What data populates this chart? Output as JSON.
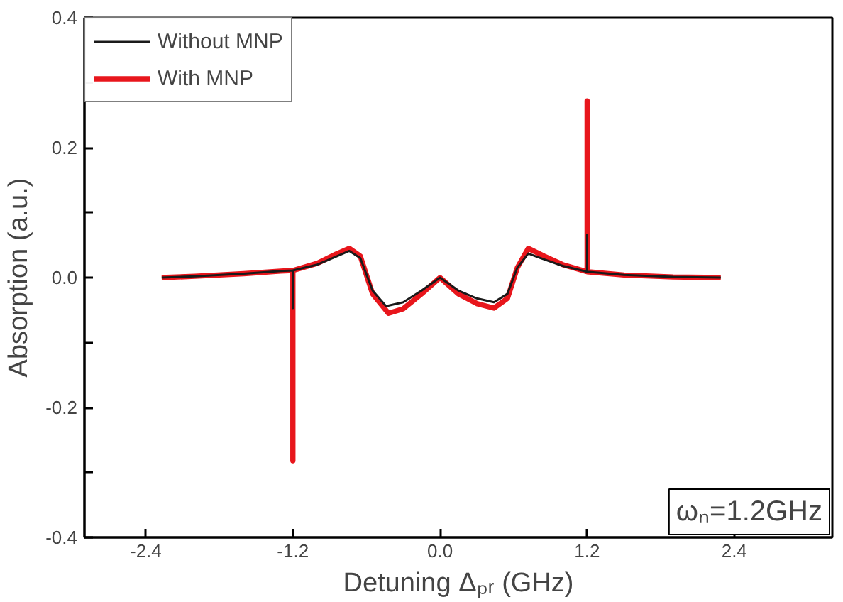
{
  "chart_data": {
    "type": "line",
    "xlabel": "Detuning Δₚᵣ (GHz)",
    "ylabel": "Absorption (a.u.)",
    "xlim": [
      -2.9,
      3.2
    ],
    "xticks": [
      -2.4,
      -1.2,
      {
        "value": 0,
        "label": "0.0"
      },
      1.2,
      2.4
    ],
    "ylim": [
      -0.4,
      0.4
    ],
    "yticks": [
      -0.4,
      {
        "value": -0.3,
        "label": null
      },
      -0.2,
      {
        "value": -0.1,
        "label": null
      },
      {
        "value": 0,
        "label": "0.0"
      },
      {
        "value": 0.1,
        "label": null
      },
      0.2,
      {
        "value": 0.3,
        "label": null
      },
      0.4
    ],
    "series": [
      {
        "name": "Without MNP",
        "color": "#1a1a1a",
        "x": [
          -2.27,
          -2.0,
          -1.6,
          -1.3,
          -1.2,
          -1.2,
          -1.2,
          -1.0,
          -0.85,
          -0.74,
          -0.65,
          -0.55,
          -0.44,
          -0.3,
          -0.15,
          0,
          0.15,
          0.3,
          0.44,
          0.55,
          0.63,
          0.72,
          0.85,
          1.0,
          1.2,
          1.2,
          1.2,
          1.5,
          1.9,
          2.29
        ],
        "values": [
          0,
          0.002,
          0.006,
          0.01,
          0.011,
          -0.047,
          0.011,
          0.02,
          0.032,
          0.041,
          0.03,
          -0.02,
          -0.044,
          -0.038,
          -0.02,
          0,
          -0.02,
          -0.032,
          -0.038,
          -0.025,
          0.015,
          0.037,
          0.028,
          0.018,
          0.009,
          0.066,
          0.009,
          0.004,
          0.001,
          0
        ]
      },
      {
        "name": "With MNP",
        "color": "#e8161c",
        "x": [
          -2.27,
          -2.0,
          -1.6,
          -1.3,
          -1.2,
          -1.2,
          -1.2,
          -1.0,
          -0.85,
          -0.74,
          -0.65,
          -0.55,
          -0.42,
          -0.3,
          -0.15,
          0,
          0.15,
          0.3,
          0.44,
          0.55,
          0.63,
          0.72,
          0.85,
          1.0,
          1.2,
          1.2,
          1.2,
          1.5,
          1.9,
          2.29
        ],
        "values": [
          0,
          0.002,
          0.006,
          0.01,
          0.011,
          -0.282,
          0.011,
          0.022,
          0.036,
          0.045,
          0.033,
          -0.025,
          -0.055,
          -0.048,
          -0.025,
          0,
          -0.025,
          -0.04,
          -0.047,
          -0.032,
          0.015,
          0.045,
          0.033,
          0.02,
          0.009,
          0.272,
          0.009,
          0.004,
          0.001,
          0
        ]
      }
    ],
    "annotations": [
      "ωₙ=1.2GHz"
    ],
    "legend": "top left",
    "grid": false
  }
}
